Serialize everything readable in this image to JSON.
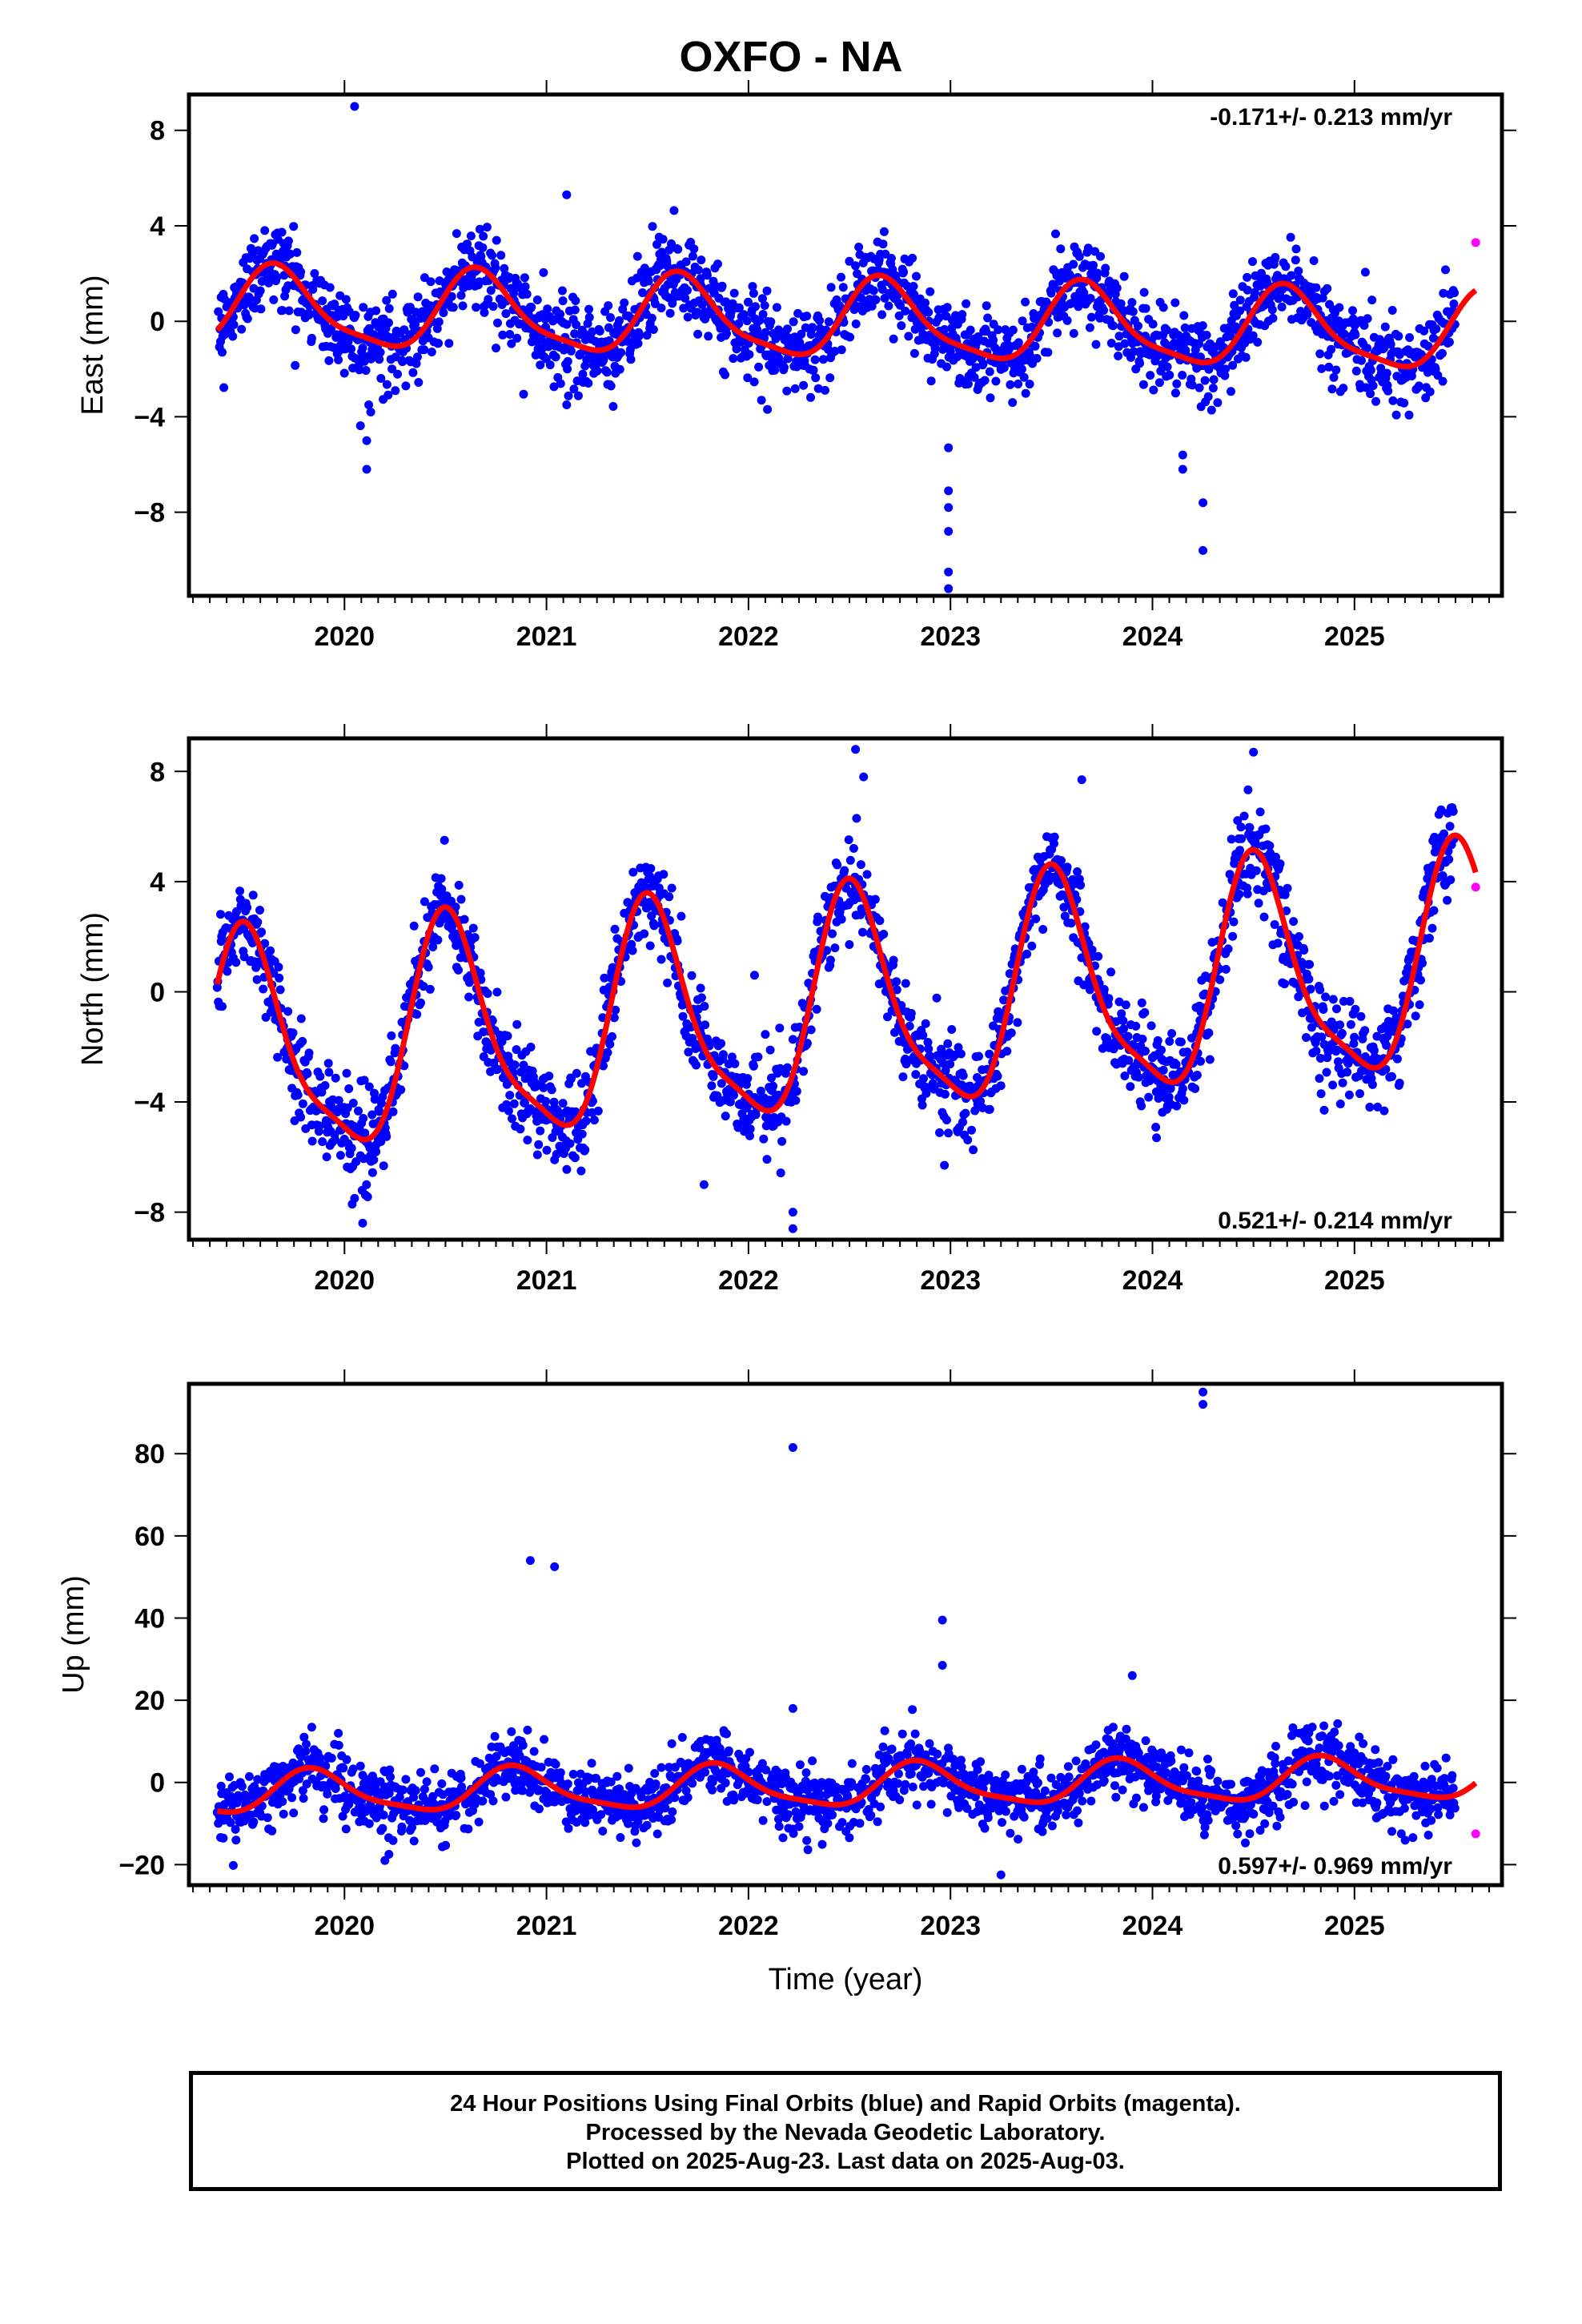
{
  "title": "OXFO - NA",
  "colors": {
    "final_orbit_points": "#0000ff",
    "rapid_orbit_points": "#ff00ff",
    "model_fit": "#ff0000"
  },
  "footer": {
    "line1": "24 Hour Positions Using Final Orbits (blue) and Rapid Orbits (magenta).",
    "line2": "Processed by the Nevada Geodetic Laboratory.",
    "line3": "Plotted on 2025-Aug-23. Last data on 2025-Aug-03."
  },
  "chart_data": [
    {
      "type": "scatter",
      "component": "east",
      "ylabel": "East (mm)",
      "rate_label": "-0.171+/- 0.213 mm/yr",
      "rate_position": "top-right",
      "xlim": [
        2019.23,
        2025.73
      ],
      "ylim": [
        -11.5,
        9.5
      ],
      "xticks": [
        2020,
        2021,
        2022,
        2023,
        2024,
        2025
      ],
      "xtick_labels": [
        "2020",
        "2021",
        "2022",
        "2023",
        "2024",
        "2025"
      ],
      "yticks": [
        -8,
        -4,
        0,
        4,
        8
      ],
      "ytick_labels": [
        "−8",
        "−4",
        "0",
        "4",
        "8"
      ],
      "first_day": 2019.37,
      "last_final_day": 2025.5,
      "model_fit": {
        "mean": 0.0,
        "rate": -0.171,
        "rate_sigma": 0.213,
        "annual_amp": 1.6,
        "annual_peak": 2019.67,
        "scatter_sd": 0.9
      },
      "outliers": [
        {
          "x": 2020.05,
          "y": 9.0
        },
        {
          "x": 2020.11,
          "y": -5.0
        },
        {
          "x": 2020.11,
          "y": -6.2
        },
        {
          "x": 2020.12,
          "y": -3.5
        },
        {
          "x": 2020.13,
          "y": -3.8
        },
        {
          "x": 2021.1,
          "y": 5.3
        },
        {
          "x": 2021.1,
          "y": -3.5
        },
        {
          "x": 2022.99,
          "y": -5.3
        },
        {
          "x": 2022.99,
          "y": -7.1
        },
        {
          "x": 2022.99,
          "y": -7.8
        },
        {
          "x": 2022.99,
          "y": -8.8
        },
        {
          "x": 2022.99,
          "y": -10.5
        },
        {
          "x": 2022.99,
          "y": -11.2
        },
        {
          "x": 2024.15,
          "y": -5.6
        },
        {
          "x": 2024.15,
          "y": -6.2
        },
        {
          "x": 2024.25,
          "y": -7.6
        },
        {
          "x": 2024.25,
          "y": -9.6
        }
      ],
      "rapid_points": [
        {
          "x": 2025.6,
          "y": 3.3
        }
      ]
    },
    {
      "type": "scatter",
      "component": "north",
      "ylabel": "North (mm)",
      "rate_label": "0.521+/- 0.214 mm/yr",
      "rate_position": "bottom-right",
      "xlim": [
        2019.23,
        2025.73
      ],
      "ylim": [
        -9.0,
        9.2
      ],
      "xticks": [
        2020,
        2021,
        2022,
        2023,
        2024,
        2025
      ],
      "xtick_labels": [
        "2020",
        "2021",
        "2022",
        "2023",
        "2024",
        "2025"
      ],
      "yticks": [
        -8,
        -4,
        0,
        4,
        8
      ],
      "ytick_labels": [
        "−8",
        "−4",
        "0",
        "4",
        "8"
      ],
      "first_day": 2019.37,
      "last_final_day": 2025.5,
      "model_fit": {
        "mean": -0.7,
        "rate": 0.521,
        "rate_sigma": 0.214,
        "annual_amp": 3.9,
        "annual_peak": 2019.52,
        "scatter_sd": 0.85
      },
      "outliers": [
        {
          "x": 2020.05,
          "y": -7.5
        },
        {
          "x": 2020.09,
          "y": -8.4
        },
        {
          "x": 2021.04,
          "y": -6.1
        },
        {
          "x": 2021.05,
          "y": -5.9
        },
        {
          "x": 2021.78,
          "y": -7.0
        },
        {
          "x": 2022.03,
          "y": 0.6
        },
        {
          "x": 2022.22,
          "y": -8.0
        },
        {
          "x": 2022.22,
          "y": -8.6
        },
        {
          "x": 2022.53,
          "y": 8.8
        },
        {
          "x": 2022.57,
          "y": 7.8
        },
        {
          "x": 2022.97,
          "y": -6.3
        },
        {
          "x": 2023.65,
          "y": 7.7
        },
        {
          "x": 2024.02,
          "y": -5.3
        },
        {
          "x": 2024.5,
          "y": 8.7
        },
        {
          "x": 2024.85,
          "y": -4.3
        },
        {
          "x": 2025.22,
          "y": -3.4
        }
      ],
      "rapid_points": [
        {
          "x": 2025.6,
          "y": 3.8
        }
      ]
    },
    {
      "type": "scatter",
      "component": "up",
      "ylabel": "Up (mm)",
      "xlabel": "Time (year)",
      "rate_label": "0.597+/- 0.969 mm/yr",
      "rate_position": "bottom-right",
      "xlim": [
        2019.23,
        2025.73
      ],
      "ylim": [
        -25,
        97
      ],
      "xticks": [
        2020,
        2021,
        2022,
        2023,
        2024,
        2025
      ],
      "xtick_labels": [
        "2020",
        "2021",
        "2022",
        "2023",
        "2024",
        "2025"
      ],
      "yticks": [
        -20,
        0,
        20,
        40,
        60,
        80
      ],
      "ytick_labels": [
        "−20",
        "0",
        "20",
        "40",
        "60",
        "80"
      ],
      "first_day": 2019.37,
      "last_final_day": 2025.5,
      "model_fit": {
        "mean": -1.0,
        "rate": 0.597,
        "rate_sigma": 0.969,
        "annual_amp": 5.0,
        "annual_peak": 2019.85,
        "scatter_sd": 3.8
      },
      "outliers": [
        {
          "x": 2020.92,
          "y": 54.0
        },
        {
          "x": 2021.04,
          "y": 52.5
        },
        {
          "x": 2022.22,
          "y": 81.5
        },
        {
          "x": 2022.22,
          "y": 18.0
        },
        {
          "x": 2022.96,
          "y": 39.5
        },
        {
          "x": 2022.96,
          "y": 28.5
        },
        {
          "x": 2023.25,
          "y": -22.5
        },
        {
          "x": 2023.9,
          "y": 26.0
        },
        {
          "x": 2024.25,
          "y": 95.0
        },
        {
          "x": 2024.25,
          "y": 92.0
        },
        {
          "x": 2020.2,
          "y": -19.0
        },
        {
          "x": 2020.22,
          "y": -17.5
        }
      ],
      "rapid_points": [
        {
          "x": 2025.6,
          "y": -12.5
        }
      ]
    }
  ]
}
